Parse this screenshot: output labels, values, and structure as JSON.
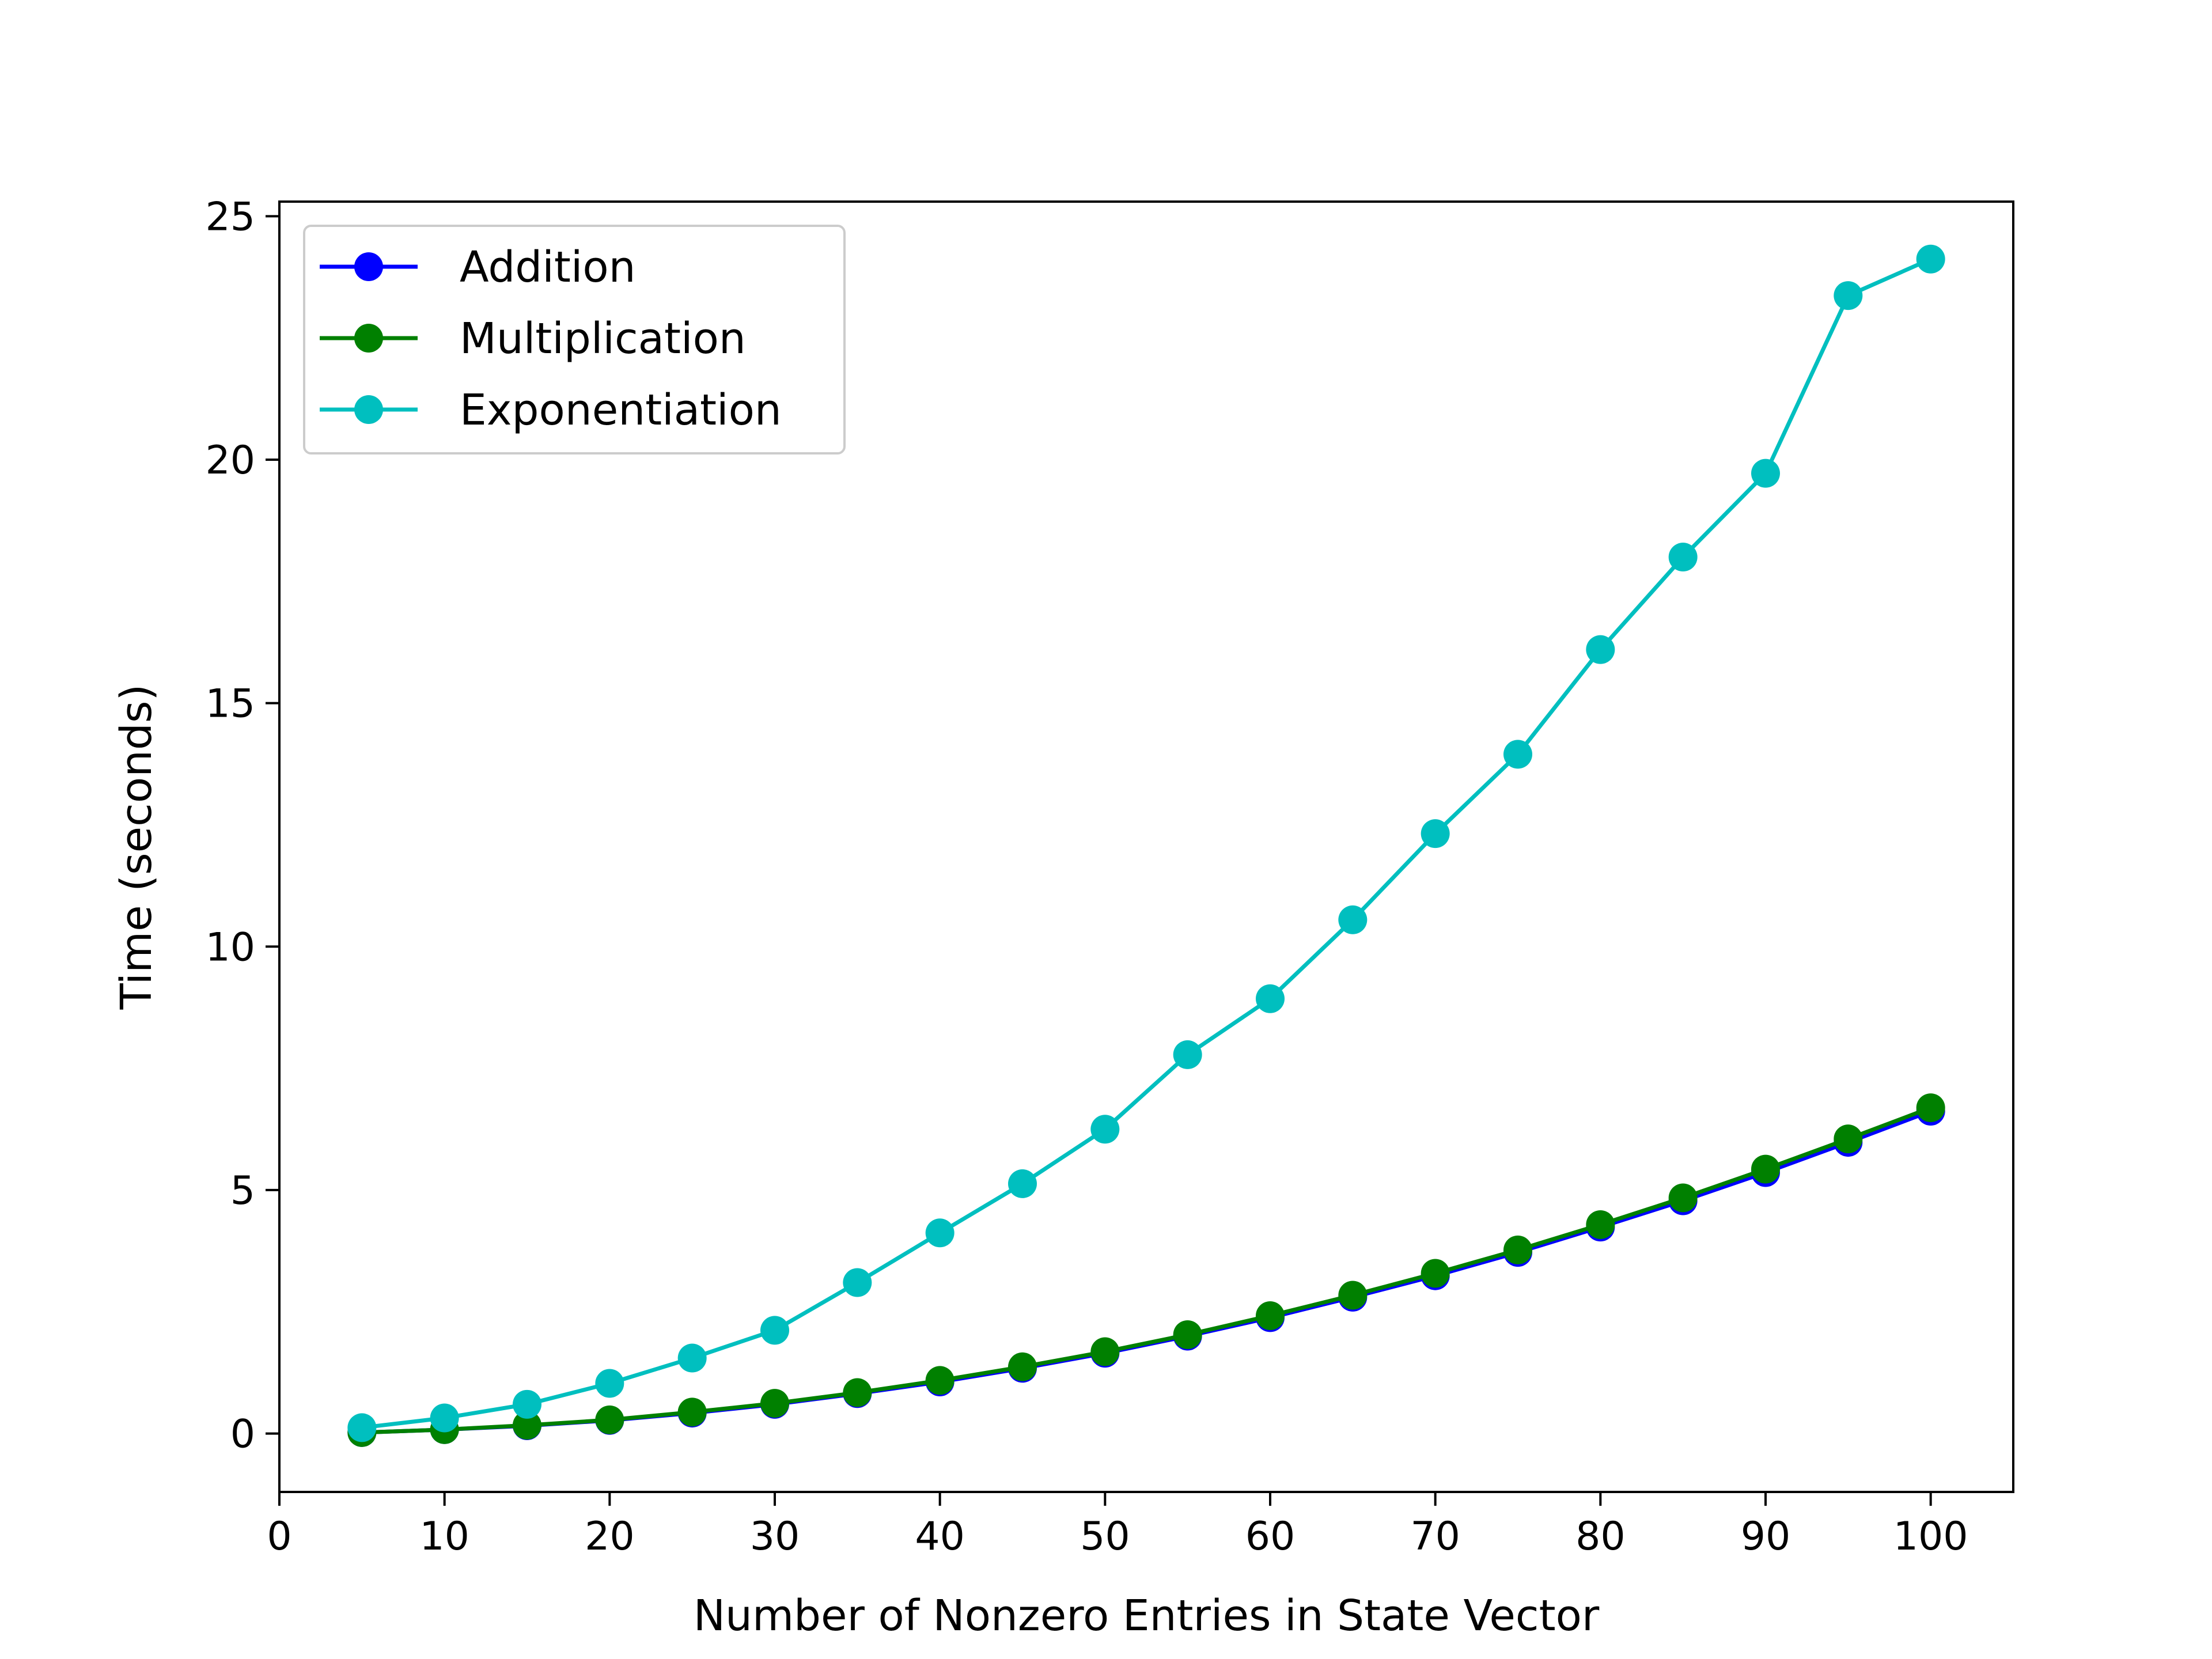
{
  "chart_data": {
    "type": "line",
    "xlabel": "Number of Nonzero Entries in State Vector",
    "ylabel": "Time (seconds)",
    "xlim": [
      0,
      105
    ],
    "ylim": [
      -1.2,
      25.3
    ],
    "xticks": [
      "0",
      "10",
      "20",
      "30",
      "40",
      "50",
      "60",
      "70",
      "80",
      "90",
      "100"
    ],
    "yticks": [
      "0",
      "5",
      "10",
      "15",
      "20",
      "25"
    ],
    "grid": false,
    "legend_position": "upper-left",
    "x": [
      5,
      10,
      15,
      20,
      25,
      30,
      35,
      40,
      45,
      50,
      55,
      60,
      65,
      70,
      75,
      80,
      85,
      90,
      95,
      100
    ],
    "series": [
      {
        "name": "Addition",
        "color": "#0000ff",
        "marker": "circle",
        "values": [
          0.02,
          0.08,
          0.16,
          0.27,
          0.42,
          0.6,
          0.82,
          1.06,
          1.34,
          1.65,
          2.0,
          2.38,
          2.8,
          3.24,
          3.72,
          4.24,
          4.78,
          5.36,
          5.98,
          6.62
        ]
      },
      {
        "name": "Multiplication",
        "color": "#008000",
        "marker": "circle",
        "values": [
          0.02,
          0.08,
          0.17,
          0.28,
          0.44,
          0.62,
          0.84,
          1.09,
          1.37,
          1.68,
          2.03,
          2.42,
          2.84,
          3.29,
          3.77,
          4.29,
          4.84,
          5.43,
          6.05,
          6.69
        ]
      },
      {
        "name": "Exponentiation",
        "color": "#00bfbf",
        "marker": "circle",
        "values": [
          0.12,
          0.32,
          0.6,
          1.03,
          1.55,
          2.12,
          3.1,
          4.12,
          5.13,
          6.25,
          7.78,
          8.93,
          10.55,
          12.32,
          13.95,
          16.1,
          18.0,
          19.72,
          23.37,
          24.12
        ]
      }
    ]
  }
}
